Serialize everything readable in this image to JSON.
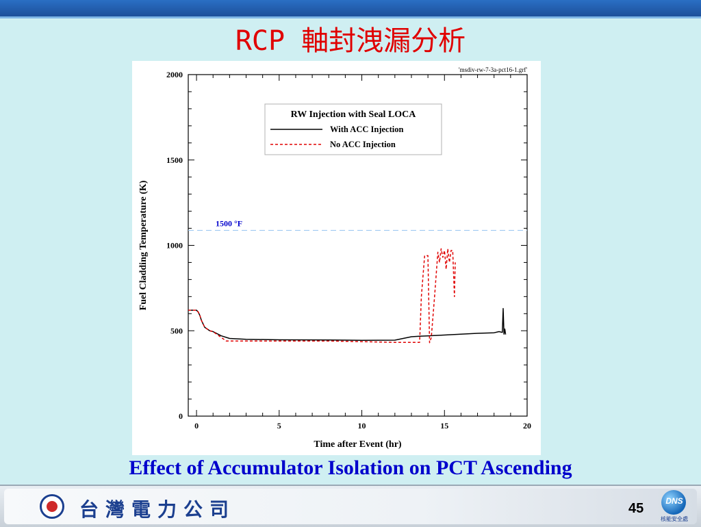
{
  "slide": {
    "title": "RCP 軸封洩漏分析",
    "caption": "Effect of Accumulator Isolation on PCT Ascending",
    "page_number": "45",
    "company_name": "台灣電力公司",
    "logo_text": "DNS",
    "logo_subtext": "核能安全處"
  },
  "colors": {
    "title": "#e00000",
    "caption": "#0000cc",
    "background": "#cfeff2",
    "series_with_acc": "#000000",
    "series_no_acc": "#e00000",
    "reference_line": "#9ec9f2",
    "reference_label": "#0000cc"
  },
  "chart_data": {
    "type": "line",
    "file_label": "'msdiv-rw-7-3a-pct16-1.grf'",
    "xlabel": "Time after Event (hr)",
    "ylabel": "Fuel Cladding Temperature (K)",
    "xlim": [
      -0.5,
      20
    ],
    "ylim": [
      0,
      2000
    ],
    "x_ticks": [
      0,
      5,
      10,
      15,
      20
    ],
    "y_ticks": [
      0,
      500,
      1000,
      1500,
      2000
    ],
    "grid": false,
    "legend": {
      "title": "RW Injection with Seal LOCA",
      "placement": "top-right",
      "entries": [
        "With ACC Injection",
        "No ACC Injection"
      ]
    },
    "reference_line": {
      "y": 1088,
      "label": "1500 °F"
    },
    "series": [
      {
        "name": "With ACC Injection",
        "style": "solid",
        "x": [
          -0.5,
          0,
          0.1,
          0.2,
          0.3,
          0.5,
          0.8,
          1.0,
          1.5,
          2.0,
          3.0,
          5.0,
          8.0,
          10.0,
          12.0,
          12.5,
          13.0,
          13.5,
          14.0,
          15.0,
          16.0,
          17.0,
          18.0,
          18.3,
          18.5,
          18.55,
          18.6,
          18.65,
          18.7
        ],
        "y": [
          620,
          620,
          610,
          590,
          560,
          520,
          500,
          495,
          470,
          455,
          450,
          447,
          446,
          444,
          445,
          455,
          465,
          468,
          470,
          475,
          480,
          485,
          488,
          495,
          490,
          630,
          480,
          510,
          478
        ]
      },
      {
        "name": "No ACC Injection",
        "style": "dashed",
        "x": [
          -0.5,
          0,
          0.1,
          0.2,
          0.3,
          0.5,
          0.8,
          1.0,
          1.5,
          1.8,
          2.0,
          3.0,
          5.0,
          8.0,
          10.0,
          12.0,
          13.0,
          13.5,
          13.6,
          13.8,
          14.0,
          14.1,
          14.2,
          14.4,
          14.6,
          14.7,
          14.8,
          14.9,
          15.0,
          15.1,
          15.2,
          15.3,
          15.4,
          15.5,
          15.6,
          15.65
        ],
        "y": [
          620,
          620,
          610,
          590,
          560,
          520,
          500,
          495,
          460,
          440,
          440,
          440,
          440,
          440,
          436,
          432,
          432,
          432,
          700,
          940,
          940,
          430,
          460,
          700,
          960,
          900,
          980,
          930,
          970,
          860,
          980,
          900,
          970,
          970,
          700,
          900
        ]
      }
    ]
  }
}
